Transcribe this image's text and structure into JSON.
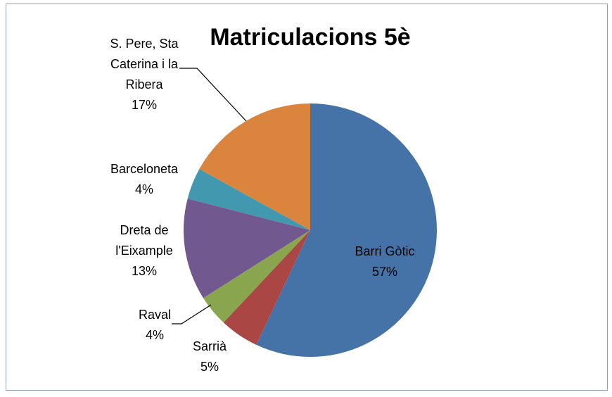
{
  "chart_data": {
    "type": "pie",
    "title": "Matriculacions 5è",
    "categories": [
      "Barri Gòtic",
      "Sarrià",
      "Raval",
      "Dreta de l'Eixample",
      "Barceloneta",
      "S. Pere, Sta Caterina i la Ribera"
    ],
    "values": [
      57,
      5,
      4,
      13,
      4,
      17
    ],
    "value_labels": [
      "57%",
      "5%",
      "4%",
      "13%",
      "4%",
      "17%"
    ],
    "colors": [
      "#4572a7",
      "#aa4643",
      "#89a54e",
      "#71588f",
      "#4198af",
      "#db843d"
    ]
  }
}
